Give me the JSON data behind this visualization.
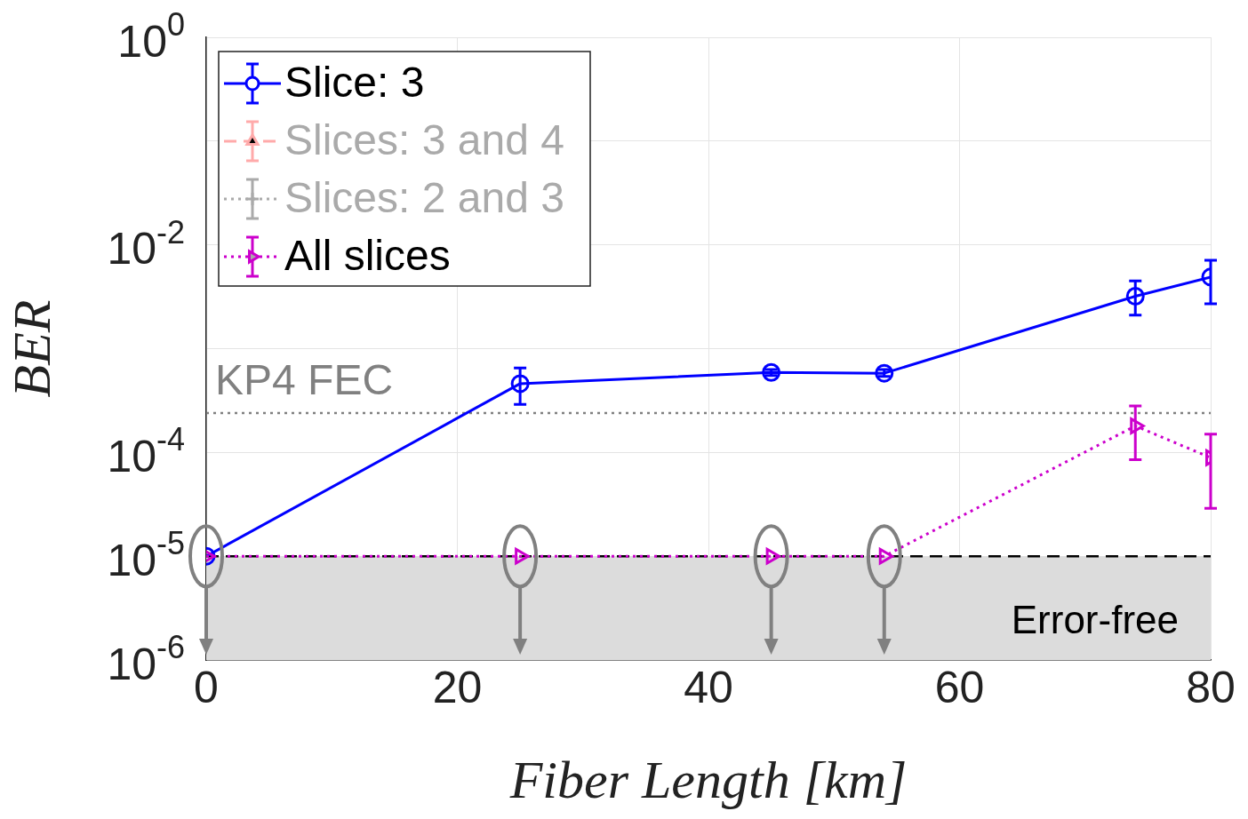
{
  "chart_data": {
    "type": "line",
    "xlabel": "Fiber Length [km]",
    "ylabel": "BER",
    "log": "y",
    "grid": true,
    "legend": "top left",
    "x": [
      0,
      25,
      45,
      54,
      74,
      80
    ],
    "xlim": [
      0,
      80
    ],
    "xticks": [
      0,
      20,
      40,
      60,
      80
    ],
    "ylim": [
      1e-06,
      1
    ],
    "yticks": [
      {
        "value": 1,
        "label": "10$^{0}$"
      },
      {
        "value": 0.1,
        "label": null
      },
      {
        "value": 0.01,
        "label": "10$^{-2}$"
      },
      {
        "value": 0.001,
        "label": null
      },
      {
        "value": 0.0001,
        "label": "10$^{-4}$"
      },
      {
        "value": 1e-05,
        "label": "10$^{-5}$"
      },
      {
        "value": 1e-06,
        "label": "10$^{-6}$"
      }
    ],
    "series": [
      {
        "name": "Slice: 3",
        "color": "#0000ff",
        "marker": "circle",
        "line_style": "solid",
        "values": [
          1e-05,
          0.00046,
          0.00059,
          0.00058,
          0.0032,
          0.0049
        ],
        "errors": [
          null,
          [
            0.00029,
            0.00065
          ],
          [
            0.00055,
            0.00063
          ],
          [
            0.00054,
            0.00063
          ],
          [
            0.0021,
            0.0045
          ],
          [
            0.0027,
            0.0071
          ]
        ]
      },
      {
        "name": "Slices: 3 and 4",
        "color": "#ffaaaa",
        "marker": "triangle",
        "line_style": "dashed",
        "values": [
          null,
          null,
          null,
          null,
          null,
          null
        ]
      },
      {
        "name": "Slices: 2 and 3",
        "color": "#aaaaaa",
        "marker": "cross",
        "line_style": "dotted",
        "values": [
          null,
          null,
          null,
          null,
          null,
          null
        ]
      },
      {
        "name": "All slices",
        "color": "#cc00cc",
        "marker": "triangle",
        "line_style": "dotted",
        "values": [
          1e-05,
          1e-05,
          1e-05,
          1e-05,
          0.00018,
          8.9e-05
        ],
        "errors": [
          null,
          null,
          null,
          null,
          [
            8.5e-05,
            0.00028
          ],
          [
            2.9e-05,
            0.00015
          ]
        ]
      }
    ],
    "ref_lines": [
      {
        "axis": "y",
        "value": 0.00024,
        "label": "KP4 FEC",
        "color": "#808080",
        "line_style": "dotted"
      },
      {
        "axis": "y",
        "value": 1e-05,
        "color": "#000000",
        "line_style": "dashed"
      }
    ],
    "bands": [
      {
        "axis": "y",
        "from": 1e-06,
        "to": 1e-05,
        "label": "Error-free",
        "color": "#dcdcdc"
      }
    ]
  }
}
